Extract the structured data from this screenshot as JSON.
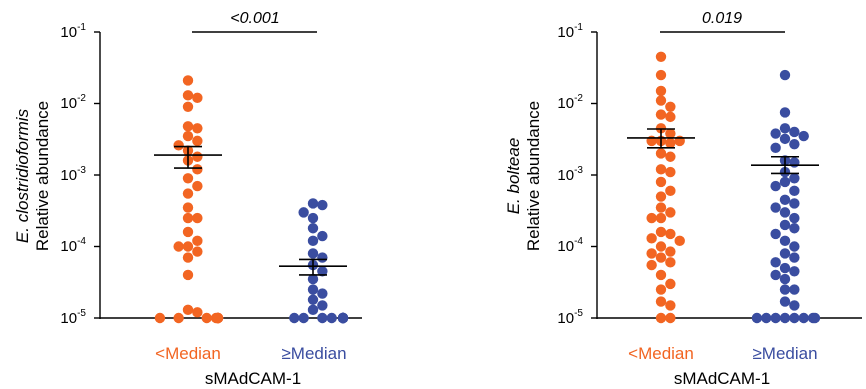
{
  "colors": {
    "low": "#f26522",
    "high": "#3a4da0",
    "axis": "#000000",
    "mean_bar": "#000000"
  },
  "chart_data": [
    {
      "type": "scatter",
      "subtype": "dot plot with mean and SEM",
      "yscale": "log",
      "ylim": [
        1e-05,
        0.1
      ],
      "ytick_labels": [
        {
          "base": "10",
          "exp": "-1"
        },
        {
          "base": "10",
          "exp": "-2"
        },
        {
          "base": "10",
          "exp": "-3"
        },
        {
          "base": "10",
          "exp": "-4"
        },
        {
          "base": "10",
          "exp": "-5"
        }
      ],
      "ylabel_species": "E. clostridioformis",
      "ylabel_measure": "Relative abundance",
      "xlabel": "sMAdCAM-1",
      "categories": [
        "<Median",
        "≥Median"
      ],
      "pvalue": "<0.001",
      "series": [
        {
          "category": "<Median",
          "mean": 0.0019,
          "sem_upper": 0.0025,
          "sem_lower": 0.00125,
          "values": [
            0.021,
            0.013,
            0.012,
            0.009,
            0.0048,
            0.0045,
            0.0035,
            0.003,
            0.0026,
            0.0022,
            0.0018,
            0.0016,
            0.0012,
            0.0009,
            0.0007,
            0.00055,
            0.00035,
            0.00025,
            0.00025,
            0.00016,
            0.00012,
            0.0001,
            0.0001,
            8.5e-05,
            7e-05,
            4e-05,
            1.3e-05,
            1.2e-05,
            1e-05,
            1e-05,
            1e-05,
            1e-05,
            1e-05,
            1e-05,
            1e-05,
            1e-05,
            1e-05,
            1e-05
          ]
        },
        {
          "category": "≥Median",
          "mean": 5.3e-05,
          "sem_upper": 6.6e-05,
          "sem_lower": 4e-05,
          "values": [
            0.0004,
            0.00038,
            0.0003,
            0.00025,
            0.00018,
            0.00014,
            0.00012,
            8e-05,
            7e-05,
            5.5e-05,
            4.5e-05,
            3.5e-05,
            2.5e-05,
            2.2e-05,
            1.8e-05,
            1.5e-05,
            1.3e-05,
            1e-05,
            1e-05,
            1e-05,
            1e-05,
            1e-05,
            1e-05,
            1e-05,
            1e-05,
            1e-05,
            1e-05,
            1e-05,
            1e-05,
            1e-05,
            1e-05,
            1e-05,
            1e-05,
            1e-05,
            1e-05,
            1e-05
          ]
        }
      ]
    },
    {
      "type": "scatter",
      "subtype": "dot plot with mean and SEM",
      "yscale": "log",
      "ylim": [
        1e-05,
        0.1
      ],
      "ytick_labels": [
        {
          "base": "10",
          "exp": "-1"
        },
        {
          "base": "10",
          "exp": "-2"
        },
        {
          "base": "10",
          "exp": "-3"
        },
        {
          "base": "10",
          "exp": "-4"
        },
        {
          "base": "10",
          "exp": "-5"
        }
      ],
      "ylabel_species": "E. bolteae",
      "ylabel_measure": "Relative abundance",
      "xlabel": "sMAdCAM-1",
      "categories": [
        "<Median",
        "≥Median"
      ],
      "pvalue": "0.019",
      "series": [
        {
          "category": "<Median",
          "mean": 0.0033,
          "sem_upper": 0.0044,
          "sem_lower": 0.0024,
          "values": [
            0.045,
            0.025,
            0.015,
            0.011,
            0.009,
            0.007,
            0.0065,
            0.0045,
            0.0038,
            0.003,
            0.003,
            0.003,
            0.0028,
            0.002,
            0.0018,
            0.0012,
            0.0011,
            0.0008,
            0.0006,
            0.0005,
            0.00035,
            0.0003,
            0.00025,
            0.00025,
            0.00016,
            0.00015,
            0.00013,
            0.00012,
            0.0001,
            8.5e-05,
            8e-05,
            7e-05,
            6e-05,
            5.5e-05,
            4e-05,
            3e-05,
            2.5e-05,
            1.7e-05,
            1.5e-05,
            1e-05,
            1e-05
          ]
        },
        {
          "category": "≥Median",
          "mean": 0.00137,
          "sem_upper": 0.0018,
          "sem_lower": 0.00105,
          "values": [
            0.025,
            0.0075,
            0.0045,
            0.004,
            0.0038,
            0.0035,
            0.0032,
            0.0027,
            0.0024,
            0.0016,
            0.0015,
            0.0011,
            0.0009,
            0.0008,
            0.0007,
            0.0006,
            0.00045,
            0.0004,
            0.00035,
            0.0003,
            0.00025,
            0.0002,
            0.00018,
            0.00015,
            0.00012,
            0.0001,
            8e-05,
            7e-05,
            6e-05,
            5e-05,
            4.5e-05,
            4e-05,
            3.5e-05,
            2.5e-05,
            2.5e-05,
            1.7e-05,
            1.5e-05,
            1e-05,
            1e-05,
            1e-05,
            1e-05,
            1e-05,
            1e-05,
            1e-05,
            1e-05
          ]
        }
      ]
    }
  ]
}
